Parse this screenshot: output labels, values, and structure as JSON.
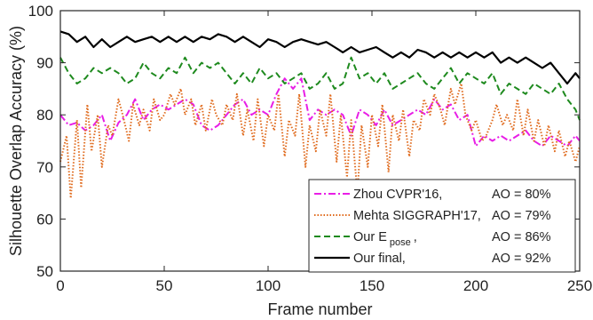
{
  "chart_data": {
    "type": "line",
    "xlabel": "Frame number",
    "ylabel": "Silhouette Overlap Accuracy (%)",
    "xlim": [
      0,
      250
    ],
    "ylim": [
      50,
      100
    ],
    "xticks": [
      0,
      50,
      100,
      150,
      200,
      250
    ],
    "yticks": [
      50,
      60,
      70,
      80,
      90,
      100
    ],
    "grid": false,
    "legend_position": "bottom-right",
    "series": [
      {
        "name": "Zhou CVPR'16,",
        "ao_label": "AO = 80%",
        "color": "#e81ee6",
        "dash": "dashdot",
        "x": [
          0,
          4,
          8,
          12,
          16,
          20,
          24,
          28,
          32,
          36,
          40,
          44,
          48,
          52,
          56,
          60,
          64,
          68,
          72,
          76,
          80,
          84,
          88,
          92,
          96,
          100,
          104,
          108,
          112,
          116,
          120,
          124,
          128,
          132,
          136,
          140,
          144,
          148,
          152,
          156,
          160,
          164,
          168,
          172,
          176,
          180,
          184,
          188,
          192,
          196,
          200,
          204,
          208,
          212,
          216,
          220,
          224,
          228,
          232,
          236,
          240,
          244,
          248,
          250
        ],
        "y": [
          80,
          78,
          78.5,
          77,
          78,
          80,
          75,
          78.5,
          80,
          83,
          79,
          81,
          82,
          81,
          82,
          83,
          82,
          78,
          77,
          78,
          80,
          82,
          83,
          80,
          81,
          80,
          84,
          87,
          85,
          87,
          79,
          81,
          80,
          81,
          80,
          76,
          81,
          80,
          78,
          81,
          78,
          79,
          80,
          81,
          80,
          83,
          81,
          82,
          79,
          80,
          74,
          76,
          75,
          76,
          75,
          76,
          77,
          75,
          74,
          76,
          75,
          74,
          76,
          75
        ]
      },
      {
        "name": "Mehta SIGGRAPH'17,",
        "ao_label": "AO = 79%",
        "color": "#e06b1e",
        "dash": "dotted",
        "x": [
          0,
          3,
          5,
          8,
          10,
          13,
          15,
          18,
          20,
          23,
          25,
          28,
          30,
          33,
          35,
          38,
          40,
          43,
          45,
          48,
          50,
          53,
          55,
          58,
          60,
          63,
          65,
          68,
          70,
          73,
          75,
          78,
          80,
          83,
          85,
          88,
          90,
          93,
          95,
          98,
          100,
          103,
          105,
          108,
          110,
          113,
          115,
          118,
          120,
          123,
          125,
          128,
          130,
          133,
          135,
          138,
          140,
          143,
          145,
          148,
          150,
          153,
          155,
          158,
          160,
          163,
          165,
          168,
          170,
          173,
          175,
          178,
          180,
          183,
          185,
          188,
          190,
          193,
          195,
          198,
          200,
          203,
          205,
          208,
          210,
          213,
          215,
          218,
          220,
          223,
          225,
          228,
          230,
          233,
          235,
          238,
          240,
          243,
          245,
          248,
          250
        ],
        "y": [
          71,
          76,
          64,
          79,
          66,
          82,
          73,
          80,
          70,
          78,
          76,
          83,
          80,
          75,
          82,
          78,
          81,
          77,
          83,
          79,
          80,
          84,
          82,
          85,
          80,
          83,
          78,
          82,
          77,
          83,
          80,
          78,
          82,
          79,
          84,
          76,
          81,
          75,
          83,
          74,
          80,
          77,
          84,
          72,
          79,
          76,
          84,
          70,
          78,
          73,
          81,
          76,
          84,
          71,
          80,
          68,
          79,
          65,
          78,
          70,
          80,
          74,
          82,
          69,
          80,
          75,
          81,
          72,
          79,
          77,
          83,
          80,
          84,
          81,
          78,
          85,
          82,
          86,
          80,
          77,
          79,
          75,
          76,
          79,
          82,
          78,
          80,
          77,
          83,
          76,
          81,
          75,
          79,
          74,
          78,
          73,
          77,
          72,
          75,
          71,
          74
        ]
      },
      {
        "name": "Our E",
        "name_sub": "pose",
        "name_tail": ",",
        "ao_label": "AO = 86%",
        "color": "#1e8a1e",
        "dash": "dashed",
        "x": [
          0,
          4,
          8,
          12,
          16,
          20,
          24,
          28,
          32,
          36,
          40,
          44,
          48,
          52,
          56,
          60,
          64,
          68,
          72,
          76,
          80,
          84,
          88,
          92,
          96,
          100,
          104,
          108,
          112,
          116,
          120,
          124,
          128,
          132,
          136,
          140,
          144,
          148,
          152,
          156,
          160,
          164,
          168,
          172,
          176,
          180,
          184,
          188,
          192,
          196,
          200,
          204,
          208,
          212,
          216,
          220,
          224,
          228,
          232,
          236,
          240,
          244,
          248,
          250
        ],
        "y": [
          91,
          88,
          86,
          87,
          89,
          88,
          89,
          88,
          86,
          87,
          90,
          88,
          87,
          89,
          88,
          91,
          88,
          90,
          89,
          90,
          88,
          86,
          88,
          86,
          89,
          87,
          88,
          86,
          87,
          88,
          85,
          86,
          88,
          85,
          86,
          91,
          87,
          88,
          86,
          88,
          85,
          86,
          87,
          88,
          86,
          85,
          87,
          89,
          86,
          88,
          87,
          86,
          88,
          84,
          86,
          85,
          84,
          86,
          85,
          84,
          86,
          83,
          81,
          79
        ]
      },
      {
        "name": "Our final,",
        "ao_label": "AO = 92%",
        "color": "#000000",
        "dash": "solid",
        "x": [
          0,
          4,
          8,
          12,
          16,
          20,
          24,
          28,
          32,
          36,
          40,
          44,
          48,
          52,
          56,
          60,
          64,
          68,
          72,
          76,
          80,
          84,
          88,
          92,
          96,
          100,
          104,
          108,
          112,
          116,
          120,
          124,
          128,
          132,
          136,
          140,
          144,
          148,
          152,
          156,
          160,
          164,
          168,
          172,
          176,
          180,
          184,
          188,
          192,
          196,
          200,
          204,
          208,
          212,
          216,
          220,
          224,
          228,
          232,
          236,
          240,
          244,
          248,
          250
        ],
        "y": [
          96,
          95.5,
          94,
          95,
          93,
          94.5,
          93,
          94,
          95,
          94,
          94.5,
          95,
          94,
          95,
          94,
          95,
          94,
          95,
          94.5,
          95.5,
          95,
          94,
          95,
          94,
          93,
          94.5,
          94,
          93,
          94,
          94.5,
          94,
          93.5,
          94,
          93,
          92,
          93,
          92,
          92.5,
          93,
          92,
          91,
          92,
          91,
          92.5,
          92,
          91,
          92,
          91,
          92,
          91,
          92,
          91,
          92,
          90,
          91,
          90,
          91,
          90,
          89,
          90,
          88,
          86,
          88,
          87
        ]
      }
    ]
  }
}
